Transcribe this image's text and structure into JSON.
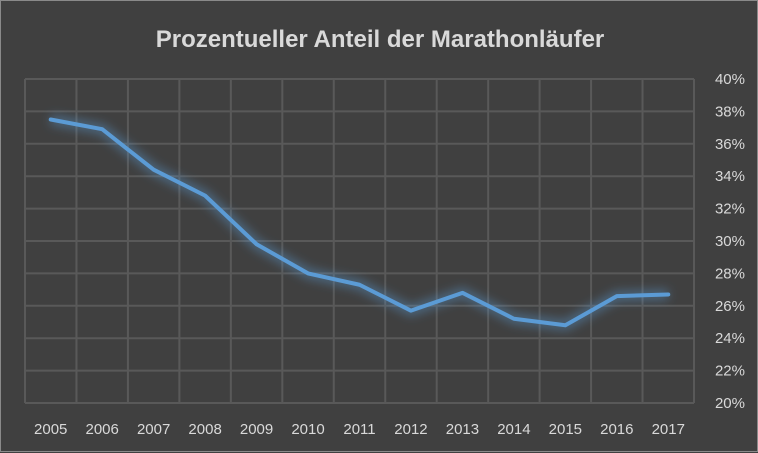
{
  "chart_data": {
    "type": "line",
    "title": "Prozentueller Anteil der Marathonläufer",
    "categories": [
      "2005",
      "2006",
      "2007",
      "2008",
      "2009",
      "2010",
      "2011",
      "2012",
      "2013",
      "2014",
      "2015",
      "2016",
      "2017"
    ],
    "series": [
      {
        "values": [
          37.5,
          36.9,
          34.4,
          32.8,
          29.8,
          28.0,
          27.3,
          25.7,
          26.8,
          25.2,
          24.8,
          26.6,
          26.7
        ],
        "color": "#5b9bd5"
      }
    ],
    "yticks": [
      "20%",
      "22%",
      "24%",
      "26%",
      "28%",
      "30%",
      "32%",
      "34%",
      "36%",
      "38%",
      "40%"
    ],
    "ylim": [
      20,
      40
    ],
    "y_axis_position": "right",
    "grid": true,
    "background": "#404040",
    "xlabel": "",
    "ylabel": ""
  }
}
